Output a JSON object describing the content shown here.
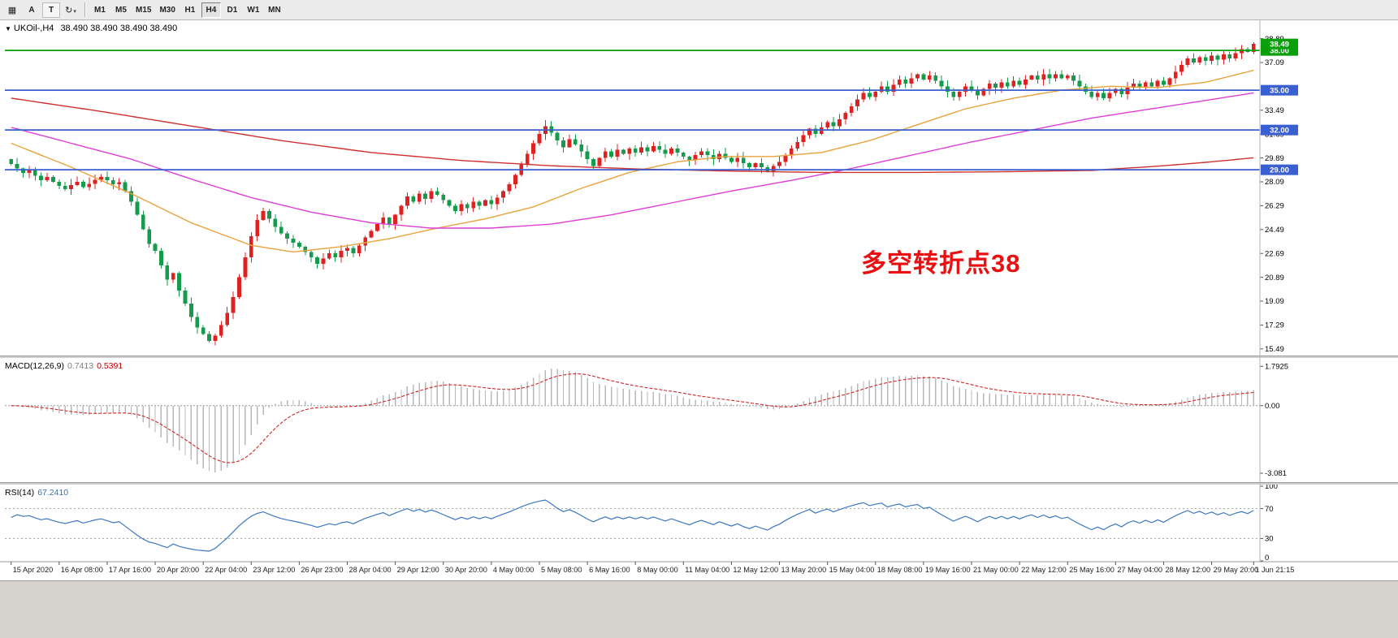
{
  "toolbar": {
    "tile_icon_glyph": "▦",
    "button_a": "A",
    "button_t": "T",
    "cycle_icon_glyph": "↻",
    "caret_glyph": "▾",
    "timeframes": [
      "M1",
      "M5",
      "M15",
      "M30",
      "H1",
      "H4",
      "D1",
      "W1",
      "MN"
    ],
    "active_timeframe": "H4"
  },
  "chart": {
    "collapse_icon": "▼",
    "symbol_title": "UKOil-,H4",
    "ohlc": "38.490 38.490 38.490 38.490",
    "annotation": {
      "text": "多空转折点38",
      "color": "#e81010"
    },
    "current_price_badge": {
      "value": 38.49,
      "label": "38.49",
      "color": "#0b9f0b"
    },
    "hlines": [
      {
        "value": 38.0,
        "label": "38.00",
        "color": "#0b9f0b"
      },
      {
        "value": 35.0,
        "label": "35.00",
        "color": "#3a5fd0"
      },
      {
        "value": 32.0,
        "label": "32.00",
        "color": "#3a5fd0"
      },
      {
        "value": 29.0,
        "label": "29.00",
        "color": "#3a5fd0"
      }
    ],
    "price_ticks": [
      38.89,
      37.09,
      35.29,
      33.49,
      31.69,
      29.89,
      28.09,
      26.29,
      24.49,
      22.69,
      20.89,
      19.09,
      17.29,
      15.49
    ]
  },
  "macd": {
    "label": "MACD(12,26,9)",
    "value_main": "0.7413",
    "value_signal": "0.5391",
    "ticks": [
      {
        "v": 1.7925,
        "label": "1.7925"
      },
      {
        "v": 0,
        "label": "0.00"
      },
      {
        "v": -3.081,
        "label": "-3.081"
      }
    ]
  },
  "rsi": {
    "label": "RSI(14)",
    "value": "67.2410",
    "levels": [
      70,
      30
    ],
    "ticks": [
      {
        "v": 100,
        "label": "100"
      },
      {
        "v": 70,
        "label": "70"
      },
      {
        "v": 30,
        "label": "30"
      },
      {
        "v": 0,
        "label": "0"
      }
    ]
  },
  "time_axis": [
    "15 Apr 2020",
    "16 Apr 08:00",
    "17 Apr 16:00",
    "20 Apr 20:00",
    "22 Apr 04:00",
    "23 Apr 12:00",
    "26 Apr 23:00",
    "28 Apr 04:00",
    "29 Apr 12:00",
    "30 Apr 20:00",
    "4 May 00:00",
    "5 May 08:00",
    "6 May 16:00",
    "8 May 00:00",
    "11 May 04:00",
    "12 May 12:00",
    "13 May 20:00",
    "15 May 04:00",
    "18 May 08:00",
    "19 May 16:00",
    "21 May 00:00",
    "22 May 12:00",
    "25 May 16:00",
    "27 May 04:00",
    "28 May 12:00",
    "29 May 20:00",
    "1 Jun 21:15"
  ],
  "chart_data": {
    "type": "candlestick",
    "symbol": "UKOil",
    "timeframe": "H4",
    "up_color": "#dd2222",
    "down_color": "#169a4b",
    "first_open": 29.8,
    "price_range": [
      15.05,
      39.05
    ],
    "closes": [
      29.45,
      29.1,
      28.75,
      29.0,
      28.55,
      28.2,
      28.45,
      28.1,
      27.8,
      27.55,
      27.85,
      28.1,
      27.7,
      27.95,
      28.25,
      28.45,
      28.2,
      27.9,
      28.05,
      27.4,
      26.6,
      25.6,
      24.5,
      23.4,
      22.9,
      21.8,
      20.7,
      21.2,
      19.9,
      18.9,
      17.9,
      17.1,
      16.6,
      16.1,
      16.5,
      17.3,
      18.2,
      19.4,
      20.9,
      22.4,
      24.0,
      25.2,
      25.9,
      25.3,
      24.7,
      24.2,
      23.8,
      23.5,
      23.2,
      22.8,
      22.4,
      21.9,
      22.3,
      22.7,
      22.4,
      22.9,
      23.1,
      22.7,
      23.3,
      23.9,
      24.4,
      24.9,
      25.4,
      24.9,
      25.6,
      26.3,
      27.0,
      26.6,
      27.2,
      26.8,
      27.4,
      27.1,
      26.7,
      26.3,
      25.9,
      26.4,
      26.1,
      26.6,
      26.3,
      26.7,
      26.4,
      26.9,
      27.4,
      27.9,
      28.6,
      29.4,
      30.2,
      31.0,
      31.7,
      32.3,
      31.8,
      31.2,
      30.7,
      31.3,
      30.9,
      30.4,
      29.8,
      29.3,
      29.9,
      30.4,
      30.0,
      30.5,
      30.2,
      30.6,
      30.3,
      30.7,
      30.4,
      30.8,
      30.5,
      30.2,
      30.6,
      30.3,
      30.0,
      29.7,
      30.1,
      30.4,
      30.1,
      29.8,
      30.2,
      29.9,
      29.6,
      29.9,
      29.5,
      29.2,
      29.5,
      29.2,
      28.9,
      29.3,
      29.6,
      30.1,
      30.6,
      31.1,
      31.6,
      32.1,
      31.7,
      32.2,
      32.6,
      32.3,
      32.8,
      33.3,
      33.8,
      34.3,
      34.8,
      34.5,
      34.9,
      35.3,
      34.9,
      35.4,
      35.8,
      35.5,
      35.9,
      36.2,
      35.8,
      36.1,
      35.7,
      35.3,
      34.9,
      34.5,
      34.9,
      35.3,
      35.0,
      34.6,
      35.1,
      35.5,
      35.2,
      35.6,
      35.3,
      35.7,
      35.4,
      35.8,
      36.1,
      35.8,
      36.2,
      35.9,
      36.2,
      35.9,
      36.1,
      35.7,
      35.3,
      34.9,
      34.5,
      34.8,
      34.4,
      34.8,
      35.1,
      34.7,
      35.2,
      35.5,
      35.2,
      35.6,
      35.3,
      35.7,
      35.4,
      35.9,
      36.4,
      36.9,
      37.4,
      37.1,
      37.5,
      37.2,
      37.6,
      37.3,
      37.7,
      37.4,
      37.8,
      38.1,
      37.9,
      38.49
    ],
    "low_overrides": {
      "33": 15.98
    },
    "high_overrides": {
      "207": 38.62
    },
    "moving_averages": [
      {
        "name": "ma-fast-orange",
        "color": "#e8a33d",
        "points": [
          [
            0,
            31.0
          ],
          [
            10,
            29.2
          ],
          [
            20,
            27.2
          ],
          [
            30,
            25.0
          ],
          [
            40,
            23.3
          ],
          [
            47,
            22.8
          ],
          [
            55,
            23.2
          ],
          [
            63,
            23.8
          ],
          [
            71,
            24.6
          ],
          [
            79,
            25.3
          ],
          [
            87,
            26.2
          ],
          [
            95,
            27.6
          ],
          [
            103,
            28.8
          ],
          [
            111,
            29.6
          ],
          [
            119,
            30.0
          ],
          [
            127,
            30.0
          ],
          [
            135,
            30.3
          ],
          [
            143,
            31.2
          ],
          [
            151,
            32.4
          ],
          [
            159,
            33.6
          ],
          [
            167,
            34.4
          ],
          [
            175,
            35.0
          ],
          [
            183,
            35.3
          ],
          [
            191,
            35.2
          ],
          [
            199,
            35.6
          ],
          [
            207,
            36.5
          ]
        ]
      },
      {
        "name": "ma-mid-magenta",
        "color": "#df3fd8",
        "points": [
          [
            0,
            32.2
          ],
          [
            10,
            31.0
          ],
          [
            20,
            29.8
          ],
          [
            30,
            28.3
          ],
          [
            40,
            26.9
          ],
          [
            50,
            25.8
          ],
          [
            60,
            25.0
          ],
          [
            70,
            24.6
          ],
          [
            80,
            24.6
          ],
          [
            90,
            24.9
          ],
          [
            100,
            25.6
          ],
          [
            110,
            26.5
          ],
          [
            120,
            27.4
          ],
          [
            130,
            28.2
          ],
          [
            140,
            29.1
          ],
          [
            150,
            30.1
          ],
          [
            160,
            31.1
          ],
          [
            170,
            32.0
          ],
          [
            180,
            32.9
          ],
          [
            190,
            33.6
          ],
          [
            200,
            34.3
          ],
          [
            207,
            34.8
          ]
        ]
      },
      {
        "name": "ma-slow-red",
        "color": "#d03030",
        "points": [
          [
            0,
            34.4
          ],
          [
            15,
            33.4
          ],
          [
            30,
            32.3
          ],
          [
            45,
            31.2
          ],
          [
            60,
            30.3
          ],
          [
            75,
            29.7
          ],
          [
            90,
            29.3
          ],
          [
            105,
            29.05
          ],
          [
            120,
            28.9
          ],
          [
            135,
            28.8
          ],
          [
            150,
            28.8
          ],
          [
            165,
            28.85
          ],
          [
            180,
            28.95
          ],
          [
            192,
            29.3
          ],
          [
            200,
            29.6
          ],
          [
            207,
            29.9
          ]
        ]
      }
    ]
  }
}
